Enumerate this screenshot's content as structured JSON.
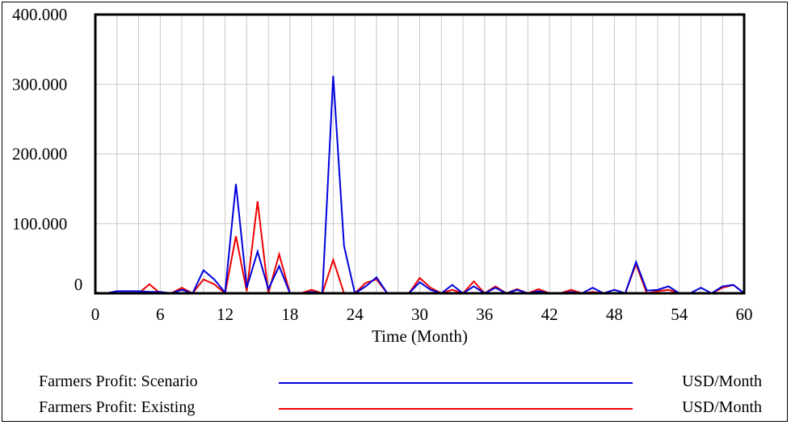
{
  "chart_data": {
    "type": "line",
    "title": "",
    "xlabel": "Time (Month)",
    "ylabel": "",
    "xlim": [
      0,
      60
    ],
    "ylim": [
      0,
      400
    ],
    "xticks": [
      0,
      6,
      12,
      18,
      24,
      30,
      36,
      42,
      48,
      54,
      60
    ],
    "xtick_labels": [
      "0",
      "6",
      "12",
      "18",
      "24",
      "30",
      "36",
      "42",
      "48",
      "54",
      "60"
    ],
    "yticks": [
      0,
      100,
      200,
      300,
      400
    ],
    "ytick_labels": [
      "0",
      "100.000",
      "200.000",
      "300.000",
      "400.000"
    ],
    "grid": true,
    "legend_position": "bottom",
    "series": [
      {
        "name": "Farmers Profit: Scenario",
        "unit": "USD/Month",
        "color": "#0000dd",
        "x": [
          0,
          1,
          2,
          3,
          4,
          5,
          6,
          7,
          8,
          9,
          10,
          11,
          12,
          13,
          14,
          15,
          16,
          17,
          18,
          19,
          20,
          21,
          22,
          23,
          24,
          25,
          26,
          27,
          28,
          29,
          30,
          31,
          32,
          33,
          34,
          35,
          36,
          37,
          38,
          39,
          40,
          41,
          42,
          43,
          44,
          45,
          46,
          47,
          48,
          49,
          50,
          51,
          52,
          53,
          54,
          55,
          56,
          57,
          58,
          59,
          60
        ],
        "values": [
          1,
          0,
          3,
          3,
          3,
          2,
          2,
          0,
          5,
          0,
          33,
          20,
          1,
          157,
          8,
          60,
          6,
          39,
          0,
          0,
          2,
          0,
          312,
          68,
          0,
          10,
          23,
          0,
          0,
          0,
          16,
          5,
          0,
          12,
          0,
          10,
          0,
          8,
          0,
          5,
          0,
          3,
          0,
          0,
          2,
          0,
          8,
          0,
          5,
          0,
          45,
          4,
          5,
          10,
          0,
          0,
          8,
          0,
          10,
          12,
          0
        ]
      },
      {
        "name": "Farmers Profit: Existing",
        "unit": "USD/Month",
        "color": "#ee0000",
        "x": [
          0,
          1,
          2,
          3,
          4,
          5,
          6,
          7,
          8,
          9,
          10,
          11,
          12,
          13,
          14,
          15,
          16,
          17,
          18,
          19,
          20,
          21,
          22,
          23,
          24,
          25,
          26,
          27,
          28,
          29,
          30,
          31,
          32,
          33,
          34,
          35,
          36,
          37,
          38,
          39,
          40,
          41,
          42,
          43,
          44,
          45,
          46,
          47,
          48,
          49,
          50,
          51,
          52,
          53,
          54,
          55,
          56,
          57,
          58,
          59,
          60
        ],
        "values": [
          0,
          0,
          0,
          0,
          0,
          13,
          0,
          0,
          8,
          0,
          20,
          13,
          0,
          82,
          3,
          132,
          0,
          56,
          0,
          0,
          5,
          0,
          48,
          0,
          0,
          15,
          20,
          0,
          0,
          0,
          22,
          8,
          0,
          5,
          0,
          17,
          0,
          10,
          0,
          6,
          0,
          6,
          0,
          0,
          5,
          0,
          2,
          0,
          0,
          0,
          42,
          0,
          3,
          5,
          0,
          0,
          0,
          0,
          8,
          12,
          0
        ]
      }
    ]
  }
}
